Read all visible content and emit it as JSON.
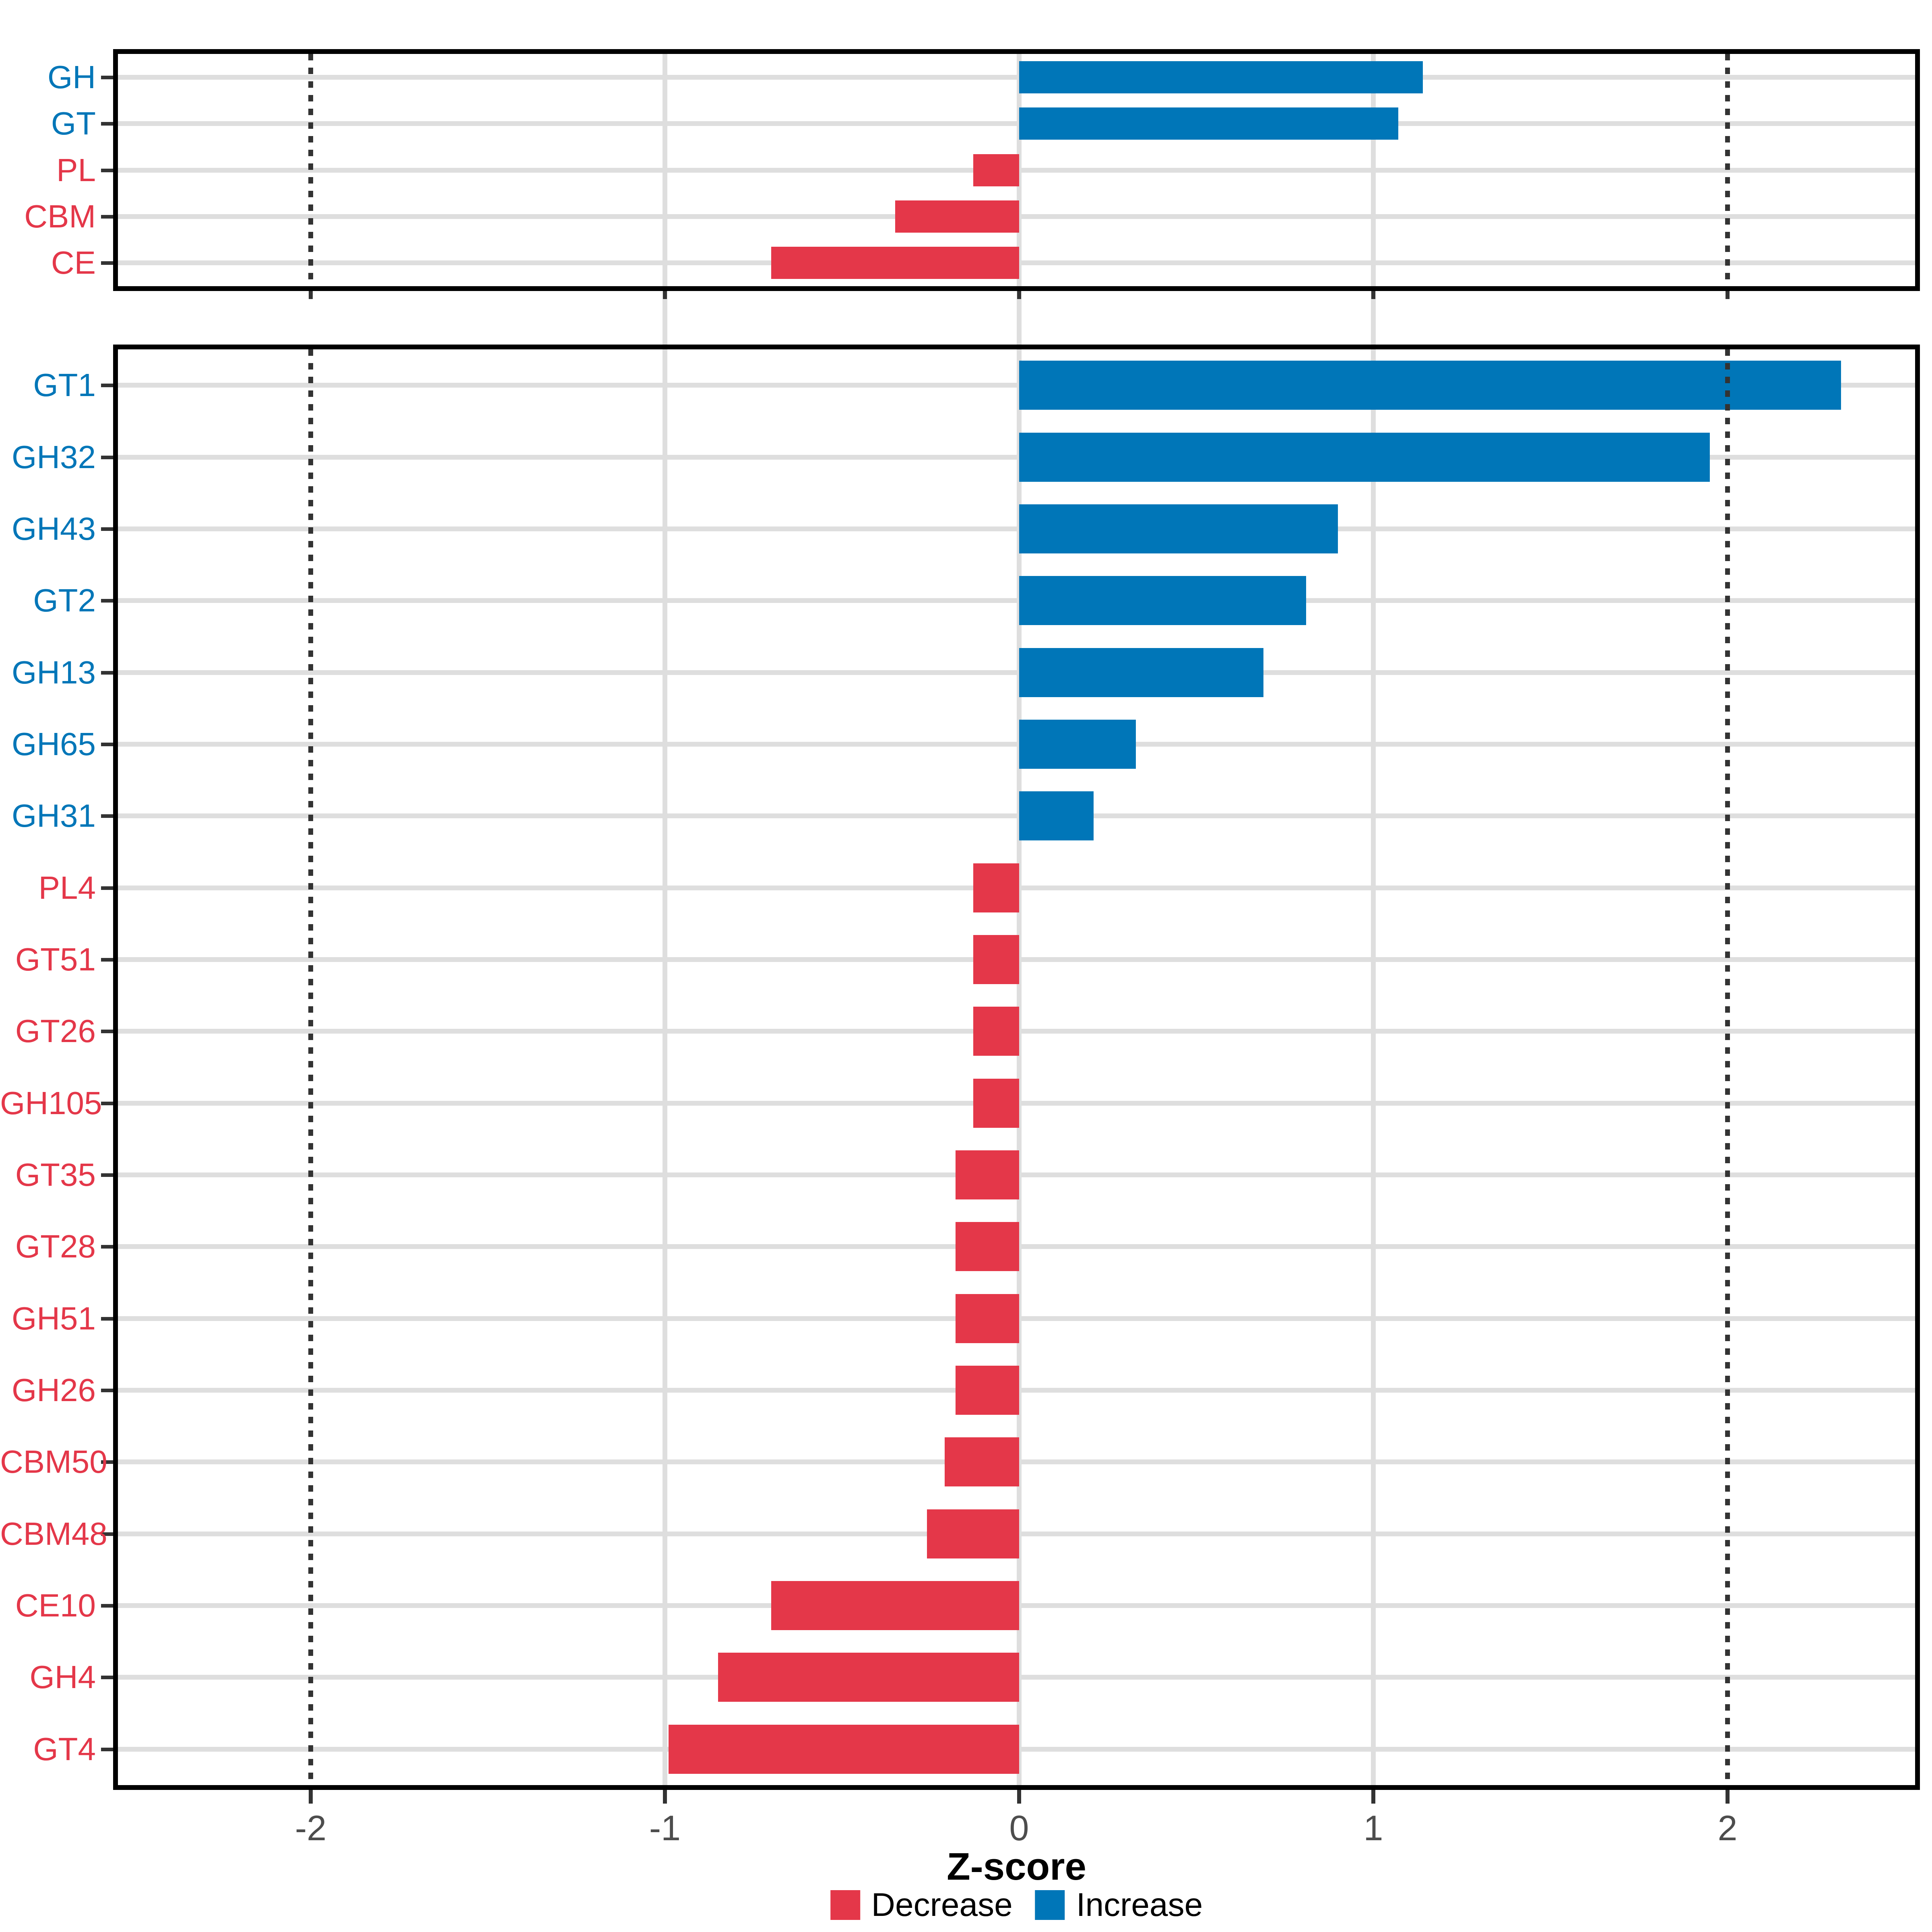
{
  "axis": {
    "title": "Z-score",
    "tick_labels": [
      "-2",
      "-1",
      "0",
      "1",
      "2"
    ],
    "tick_values": [
      -2,
      -1,
      0,
      1,
      2
    ],
    "gridline_values": [
      -1,
      0,
      1
    ],
    "reference_line_values": [
      -2,
      2
    ],
    "range": [
      -2.56,
      2.54
    ]
  },
  "legend": {
    "items": [
      {
        "label": "Decrease",
        "direction": "decrease",
        "color": "#E43749"
      },
      {
        "label": "Increase",
        "direction": "increase",
        "color": "#0076B8"
      }
    ]
  },
  "colors": {
    "increase": "#0076B8",
    "decrease": "#E43749",
    "grid": "#DEDEDE",
    "reference_line": "#333333",
    "panel_border": "#000000",
    "tick": "#333333",
    "axis_text": "#4D4D4D",
    "axis_title": "#000000",
    "background": "#FFFFFF"
  },
  "chart_data": [
    {
      "type": "bar",
      "orientation": "horizontal",
      "panel": "cazyme-class-summary",
      "categories": [
        "GH",
        "GT",
        "PL",
        "CBM",
        "CE"
      ],
      "values": [
        1.14,
        1.07,
        -0.13,
        -0.35,
        -0.7
      ],
      "directions": [
        "increase",
        "increase",
        "decrease",
        "decrease",
        "decrease"
      ],
      "xlabel": "Z-score",
      "xlim": [
        -2.56,
        2.54
      ],
      "grid": true,
      "reference_lines": [
        -2,
        2
      ]
    },
    {
      "type": "bar",
      "orientation": "horizontal",
      "panel": "cazyme-family-detail",
      "categories": [
        "GT1",
        "GH32",
        "GH43",
        "GT2",
        "GH13",
        "GH65",
        "GH31",
        "PL4",
        "GT51",
        "GT26",
        "GH105",
        "GT35",
        "GT28",
        "GH51",
        "GH26",
        "CBM50",
        "CBM48",
        "CE10",
        "GH4",
        "GT4"
      ],
      "values": [
        2.32,
        1.95,
        0.9,
        0.81,
        0.69,
        0.33,
        0.21,
        -0.13,
        -0.13,
        -0.13,
        -0.13,
        -0.18,
        -0.18,
        -0.18,
        -0.18,
        -0.21,
        -0.26,
        -0.7,
        -0.85,
        -0.99
      ],
      "directions": [
        "increase",
        "increase",
        "increase",
        "increase",
        "increase",
        "increase",
        "increase",
        "decrease",
        "decrease",
        "decrease",
        "decrease",
        "decrease",
        "decrease",
        "decrease",
        "decrease",
        "decrease",
        "decrease",
        "decrease",
        "decrease",
        "decrease"
      ],
      "xlabel": "Z-score",
      "xlim": [
        -2.56,
        2.54
      ],
      "grid": true,
      "reference_lines": [
        -2,
        2
      ],
      "legend_position": "bottom"
    }
  ]
}
